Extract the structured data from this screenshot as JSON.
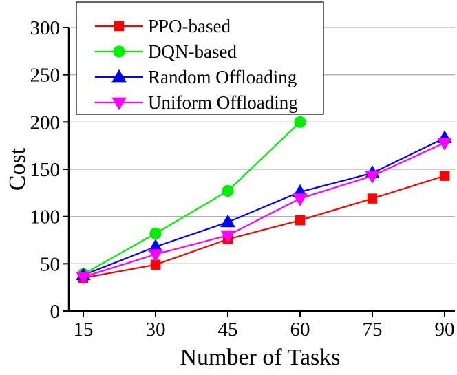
{
  "chart_data": {
    "type": "line",
    "title": "",
    "xlabel": "Number of Tasks",
    "ylabel": "Cost",
    "x": [
      15,
      30,
      45,
      60,
      75,
      90
    ],
    "xticks": [
      "15",
      "30",
      "45",
      "60",
      "75",
      "90"
    ],
    "yticks": [
      "0",
      "50",
      "100",
      "150",
      "200",
      "250",
      "300"
    ],
    "xlim": [
      12,
      92
    ],
    "ylim": [
      0,
      300
    ],
    "grid": {
      "y": true,
      "x": false,
      "color": "#b0b0b0"
    },
    "legend_position": "upper left",
    "series": [
      {
        "name": "PPO-based",
        "color": "#ff0000",
        "marker": "square",
        "values": [
          35,
          49,
          76,
          96,
          119,
          143
        ]
      },
      {
        "name": "DQN-based",
        "color": "#00ee00",
        "marker": "circle",
        "values": [
          39,
          82,
          127,
          200,
          null,
          null
        ]
      },
      {
        "name": "Random Offloading",
        "color": "#0000ff",
        "marker": "triangle-up",
        "values": [
          38,
          68,
          94,
          126,
          146,
          183
        ]
      },
      {
        "name": "Uniform Offloading",
        "color": "#ff00ff",
        "marker": "triangle-down",
        "values": [
          36,
          60,
          80,
          119,
          143,
          178
        ]
      }
    ]
  }
}
